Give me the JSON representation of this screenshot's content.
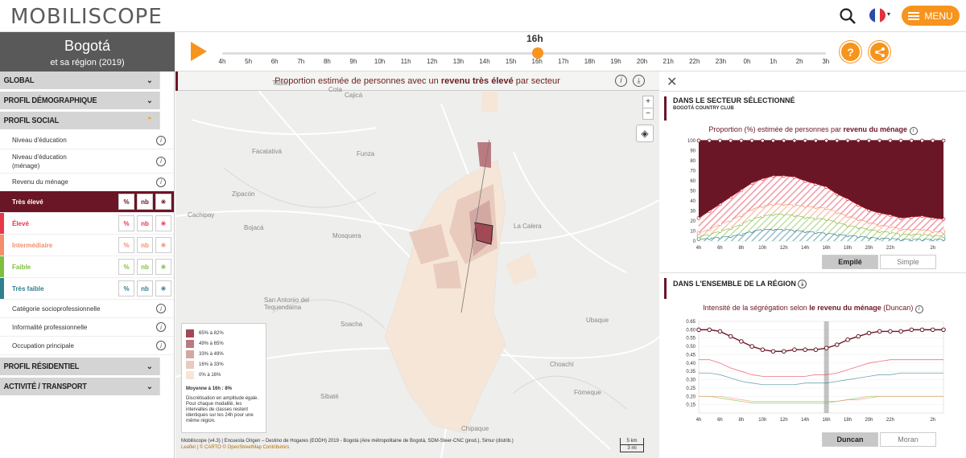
{
  "app": {
    "logo": "MOBILISCOPE",
    "menu_label": "MENU",
    "language": "fr"
  },
  "city": {
    "name": "Bogotá",
    "subtitle": "et sa région (2019)"
  },
  "timeline": {
    "current": "16h",
    "hours": [
      "4h",
      "5h",
      "6h",
      "7h",
      "8h",
      "9h",
      "10h",
      "11h",
      "12h",
      "13h",
      "14h",
      "15h",
      "16h",
      "17h",
      "18h",
      "19h",
      "20h",
      "21h",
      "22h",
      "23h",
      "0h",
      "1h",
      "2h",
      "3h"
    ],
    "current_index": 12
  },
  "sidebar": {
    "sections": [
      {
        "label": "Global"
      },
      {
        "label": "Profil démographique"
      },
      {
        "label": "Profil social",
        "open": true
      }
    ],
    "social_items": [
      {
        "label": "Niveau d'éducation"
      },
      {
        "label": "Niveau d'éducation\n(ménage)"
      },
      {
        "label": "Revenu du ménage"
      }
    ],
    "categories": [
      {
        "label": "Très élevé",
        "color": "#6b1626",
        "selected": true
      },
      {
        "label": "Élevé",
        "color": "#e8364b"
      },
      {
        "label": "Intermédiaire",
        "color": "#f38d6a"
      },
      {
        "label": "Faible",
        "color": "#7fbf3f"
      },
      {
        "label": "Très faible",
        "color": "#2f7f8f"
      }
    ],
    "toggle_labels": {
      "pct": "%",
      "nb": "nb",
      "flow": "✳"
    },
    "other_items": [
      {
        "label": "Catégorie socioprofessionnelle"
      },
      {
        "label": "Informalité professionnelle"
      },
      {
        "label": "Occupation principale"
      }
    ],
    "bottom_sections": [
      {
        "label": "Profil résidentiel"
      },
      {
        "label": "Activité / transport"
      }
    ]
  },
  "map": {
    "banner_pre": "Proportion estimée de personnes avec un ",
    "banner_bold": "revenu très élevé",
    "banner_post": " par secteur",
    "places": [
      "Zipacón",
      "Cachipay",
      "Facatativá",
      "Tabio",
      "Cota",
      "Cajicá",
      "Funza",
      "Bojacá",
      "Mosquera",
      "La Calera",
      "San Antonio del Tequendama",
      "Soacha",
      "Sibaté",
      "Choachí",
      "Fómeque",
      "Chipaque",
      "Ubaque"
    ],
    "legend": {
      "classes": [
        {
          "label": "65% à 82%",
          "color": "#a14a56"
        },
        {
          "label": "49% à 65%",
          "color": "#b97b80"
        },
        {
          "label": "33% à 49%",
          "color": "#d2a8a3"
        },
        {
          "label": "16% à 33%",
          "color": "#e9cbbd"
        },
        {
          "label": "0% à 16%",
          "color": "#f6e6d8"
        }
      ],
      "mean": "Moyenne à 16h : 8%",
      "note": "Discrétisation en amplitude égale. Pour chaque modalité, les intervalles de classes restent identiques sur les 24h pour une même région."
    },
    "credit": "Mobiliscope (v4.3) | Encuesta Origen – Destino de Hogares (EODH) 2019 - Bogotá (Aire métropolitaine de Bogotá, SDM-Steer-CNC (prod.), Simur (distrib.)",
    "credit2": "Leaflet | © CARTO © OpenStreetMap Contributors",
    "scale": [
      "5 km",
      "3 mi"
    ]
  },
  "right": {
    "head1": "Dans le secteur sélectionné",
    "head1_sub": "BOGOTÁ COUNTRY CLUB",
    "chart1_title_pre": "Proportion (%) estimée de personnes par ",
    "chart1_title_bold": "revenu du ménage",
    "btn_stack": "Empilé",
    "btn_simple": "Simple",
    "head2": "Dans l'ensemble de la région",
    "chart2_title_pre": "Intensité de la ségrégation selon ",
    "chart2_title_bold": "le revenu du ménage",
    "chart2_title_post": " (Duncan)",
    "btn_duncan": "Duncan",
    "btn_moran": "Moran"
  },
  "chart_data": [
    {
      "type": "area",
      "title": "Proportion (%) estimée de personnes par revenu du ménage",
      "stacked": true,
      "x": [
        "4h",
        "5h",
        "6h",
        "7h",
        "8h",
        "9h",
        "10h",
        "11h",
        "12h",
        "13h",
        "14h",
        "15h",
        "16h",
        "17h",
        "18h",
        "19h",
        "20h",
        "21h",
        "22h",
        "23h",
        "0h",
        "1h",
        "2h",
        "3h"
      ],
      "x_ticks": [
        "4h",
        "6h",
        "8h",
        "10h",
        "12h",
        "14h",
        "16h",
        "18h",
        "20h",
        "22h",
        "2h"
      ],
      "ylim": [
        0,
        100
      ],
      "yticks": [
        0,
        10,
        20,
        30,
        40,
        50,
        60,
        70,
        80,
        90,
        100
      ],
      "series": [
        {
          "name": "Très faible",
          "color": "#2f7f8f",
          "values": [
            2,
            3,
            4,
            5,
            7,
            10,
            12,
            12,
            12,
            11,
            10,
            9,
            8,
            7,
            6,
            5,
            4,
            3,
            3,
            2,
            2,
            2,
            2,
            2
          ]
        },
        {
          "name": "Faible",
          "color": "#7fbf3f",
          "values": [
            3,
            4,
            6,
            8,
            10,
            12,
            13,
            15,
            15,
            15,
            14,
            14,
            14,
            12,
            10,
            9,
            8,
            7,
            6,
            5,
            5,
            5,
            4,
            3
          ]
        },
        {
          "name": "Intermédiaire",
          "color": "#f38d6a",
          "values": [
            3,
            5,
            7,
            8,
            9,
            10,
            10,
            10,
            10,
            10,
            11,
            11,
            11,
            10,
            9,
            8,
            7,
            6,
            6,
            5,
            5,
            5,
            4,
            4
          ]
        },
        {
          "name": "Élevé",
          "color": "#e8364b",
          "values": [
            15,
            18,
            20,
            23,
            25,
            26,
            27,
            28,
            28,
            28,
            25,
            23,
            21,
            18,
            17,
            14,
            12,
            12,
            11,
            11,
            12,
            13,
            13,
            13
          ]
        },
        {
          "name": "Très élevé",
          "color": "#6b1626",
          "values": [
            77,
            70,
            63,
            56,
            49,
            42,
            38,
            35,
            35,
            36,
            40,
            43,
            46,
            53,
            58,
            64,
            69,
            72,
            74,
            77,
            76,
            75,
            77,
            78
          ]
        }
      ]
    },
    {
      "type": "line",
      "title": "Intensité de la ségrégation selon le revenu du ménage (Duncan)",
      "x": [
        "4h",
        "5h",
        "6h",
        "7h",
        "8h",
        "9h",
        "10h",
        "11h",
        "12h",
        "13h",
        "14h",
        "15h",
        "16h",
        "17h",
        "18h",
        "19h",
        "20h",
        "21h",
        "22h",
        "23h",
        "0h",
        "1h",
        "2h",
        "3h"
      ],
      "x_ticks": [
        "4h",
        "6h",
        "8h",
        "10h",
        "12h",
        "14h",
        "16h",
        "18h",
        "20h",
        "22h",
        "2h"
      ],
      "ylim": [
        0.1,
        0.65
      ],
      "yticks": [
        0.15,
        0.2,
        0.25,
        0.3,
        0.35,
        0.4,
        0.45,
        0.5,
        0.55,
        0.6,
        0.65
      ],
      "series": [
        {
          "name": "Très élevé",
          "color": "#6b1626",
          "values": [
            0.6,
            0.6,
            0.59,
            0.56,
            0.53,
            0.5,
            0.48,
            0.47,
            0.47,
            0.48,
            0.48,
            0.48,
            0.49,
            0.51,
            0.54,
            0.56,
            0.58,
            0.59,
            0.59,
            0.59,
            0.6,
            0.6,
            0.6,
            0.6
          ]
        },
        {
          "name": "Élevé",
          "color": "#e8364b",
          "values": [
            0.42,
            0.42,
            0.4,
            0.37,
            0.35,
            0.33,
            0.32,
            0.32,
            0.32,
            0.32,
            0.32,
            0.33,
            0.33,
            0.34,
            0.36,
            0.38,
            0.4,
            0.41,
            0.42,
            0.42,
            0.42,
            0.42,
            0.42,
            0.42
          ]
        },
        {
          "name": "Très faible",
          "color": "#2f7f8f",
          "values": [
            0.34,
            0.34,
            0.33,
            0.31,
            0.29,
            0.28,
            0.27,
            0.27,
            0.27,
            0.27,
            0.28,
            0.28,
            0.28,
            0.29,
            0.3,
            0.31,
            0.32,
            0.33,
            0.33,
            0.34,
            0.34,
            0.34,
            0.34,
            0.34
          ]
        },
        {
          "name": "Faible",
          "color": "#7fbf3f",
          "values": [
            0.2,
            0.2,
            0.19,
            0.18,
            0.17,
            0.16,
            0.16,
            0.16,
            0.16,
            0.16,
            0.16,
            0.16,
            0.16,
            0.17,
            0.18,
            0.19,
            0.2,
            0.2,
            0.2,
            0.2,
            0.2,
            0.2,
            0.2,
            0.2
          ]
        },
        {
          "name": "Intermédiaire",
          "color": "#f38d6a",
          "values": [
            0.2,
            0.2,
            0.2,
            0.19,
            0.18,
            0.17,
            0.17,
            0.17,
            0.17,
            0.17,
            0.17,
            0.17,
            0.17,
            0.17,
            0.18,
            0.18,
            0.19,
            0.2,
            0.2,
            0.2,
            0.2,
            0.2,
            0.2,
            0.2
          ]
        }
      ]
    }
  ]
}
